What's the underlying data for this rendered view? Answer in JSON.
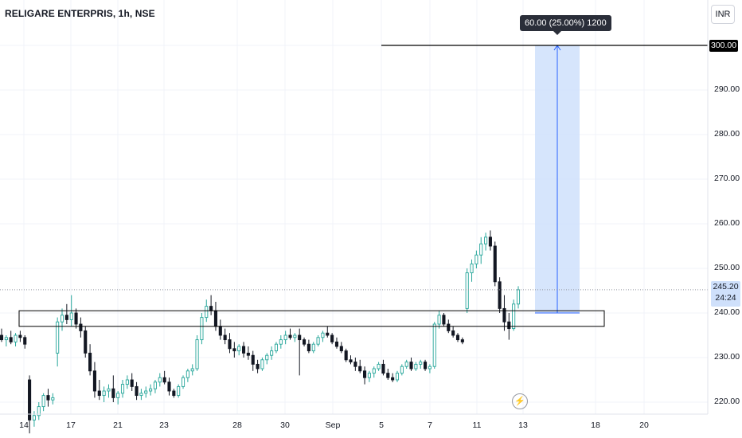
{
  "header": {
    "symbol": "RELIGARE ENTERPRIS, 1h, NSE",
    "currency": "INR"
  },
  "measure_tooltip": "60.00 (25.00%) 1200",
  "target_price_label": "300.00",
  "current_price": {
    "price": "245.20",
    "countdown": "24:24"
  },
  "colors": {
    "up": "#26a69a",
    "down": "#131722",
    "measure_fill": "#cfe0fb",
    "measure_line": "#2962ff"
  },
  "icons": {
    "replay": "lightning-icon"
  },
  "chart_data": {
    "type": "candlestick",
    "title": "RELIGARE ENTERPRIS, 1h, NSE",
    "ylim": [
      218,
      303
    ],
    "y_ticks": [
      "300.00",
      "290.00",
      "280.00",
      "270.00",
      "260.00",
      "250.00",
      "240.00",
      "230.00",
      "220.00"
    ],
    "x_ticks": [
      "14",
      "17",
      "21",
      "23",
      "28",
      "30",
      "Sep",
      "5",
      "7",
      "11",
      "13",
      "18",
      "20"
    ],
    "support_zone": {
      "low": 237,
      "high": 240.5
    },
    "target_line": 300,
    "measure": {
      "from_price": 240,
      "to_price": 300,
      "change": 60,
      "percent": 25,
      "qty": 1200
    },
    "candles": [
      [
        235,
        236.5,
        233.5,
        234
      ],
      [
        234,
        235,
        232.5,
        234.5
      ],
      [
        234.5,
        236,
        233,
        233.5
      ],
      [
        233.5,
        235.5,
        232.5,
        235
      ],
      [
        235,
        236,
        233.5,
        234.5
      ],
      [
        234.5,
        235,
        232,
        233
      ],
      [
        225,
        226,
        213,
        216
      ],
      [
        216,
        218,
        214.5,
        217
      ],
      [
        217,
        220,
        216,
        219
      ],
      [
        219,
        222,
        218,
        221.5
      ],
      [
        221.5,
        223,
        219,
        220.5
      ],
      [
        220.5,
        222,
        219.5,
        221
      ],
      [
        231,
        239,
        228,
        238
      ],
      [
        238,
        241,
        236,
        239.5
      ],
      [
        239.5,
        242,
        237.5,
        238.5
      ],
      [
        238.5,
        244,
        237,
        240
      ],
      [
        240,
        241,
        236.5,
        237.5
      ],
      [
        237.5,
        239,
        234.5,
        236
      ],
      [
        236,
        237,
        230,
        231
      ],
      [
        231,
        233,
        226,
        227
      ],
      [
        227,
        229,
        221,
        222.5
      ],
      [
        222.5,
        225,
        220.5,
        221.5
      ],
      [
        221.5,
        223.5,
        220,
        222.5
      ],
      [
        222.5,
        224,
        221,
        223
      ],
      [
        223,
        226,
        220,
        221
      ],
      [
        221,
        222.5,
        219.5,
        222
      ],
      [
        222,
        225,
        221,
        224
      ],
      [
        224,
        226,
        223,
        225
      ],
      [
        225,
        226.5,
        222.5,
        223.5
      ],
      [
        223.5,
        224.5,
        220.5,
        221.5
      ],
      [
        221.5,
        223,
        220.5,
        222
      ],
      [
        222,
        223.5,
        221,
        222.5
      ],
      [
        222.5,
        224,
        221.5,
        223
      ],
      [
        223,
        225,
        222,
        224.5
      ],
      [
        224.5,
        226.5,
        223.5,
        225.5
      ],
      [
        225.5,
        227,
        224,
        224.5
      ],
      [
        224.5,
        225.5,
        221.5,
        222.5
      ],
      [
        222.5,
        223,
        221,
        221.5
      ],
      [
        221.5,
        224,
        221,
        223.5
      ],
      [
        223.5,
        226,
        223,
        225.5
      ],
      [
        225.5,
        227.5,
        224.5,
        227
      ],
      [
        227,
        228.5,
        226,
        227.5
      ],
      [
        227.5,
        235,
        227,
        234
      ],
      [
        234,
        240,
        233,
        239
      ],
      [
        239,
        243,
        238,
        241.5
      ],
      [
        241.5,
        244,
        239.5,
        240.5
      ],
      [
        240.5,
        242.5,
        236,
        237
      ],
      [
        237,
        238.5,
        234,
        235
      ],
      [
        235,
        236.5,
        233,
        234
      ],
      [
        234,
        235.5,
        231,
        232
      ],
      [
        232,
        233.5,
        230,
        231.5
      ],
      [
        231.5,
        233,
        230.5,
        232.5
      ],
      [
        232.5,
        233.5,
        230,
        231
      ],
      [
        231,
        232.5,
        229.5,
        230.5
      ],
      [
        230.5,
        231.5,
        227,
        228.5
      ],
      [
        228.5,
        229.5,
        226.5,
        227.5
      ],
      [
        227.5,
        230,
        227,
        229.5
      ],
      [
        229.5,
        231,
        228.5,
        230.5
      ],
      [
        230.5,
        232.5,
        229.5,
        231.5
      ],
      [
        231.5,
        233.5,
        231,
        233
      ],
      [
        233,
        235,
        232,
        234
      ],
      [
        234,
        236,
        233,
        235
      ],
      [
        235,
        236.5,
        234,
        234.5
      ],
      [
        234.5,
        235.5,
        233.5,
        235
      ],
      [
        235,
        236.5,
        226,
        234
      ],
      [
        234,
        234.5,
        232.5,
        233
      ],
      [
        233,
        234,
        231,
        231.5
      ],
      [
        231.5,
        233.5,
        231,
        233
      ],
      [
        233,
        235,
        232.5,
        234.5
      ],
      [
        234.5,
        236,
        233.5,
        235.5
      ],
      [
        235.5,
        237,
        234.5,
        235
      ],
      [
        235,
        235.5,
        233,
        233.5
      ],
      [
        233.5,
        234.5,
        232,
        232.5
      ],
      [
        232.5,
        233.5,
        231,
        231.5
      ],
      [
        231.5,
        232,
        229,
        229.5
      ],
      [
        229.5,
        230.5,
        228.5,
        229
      ],
      [
        229,
        230,
        227,
        228
      ],
      [
        228,
        229.5,
        226.5,
        227
      ],
      [
        227,
        228,
        224,
        225.5
      ],
      [
        225.5,
        227,
        224.5,
        226.5
      ],
      [
        226.5,
        228,
        225.5,
        227.5
      ],
      [
        227.5,
        229,
        227,
        228.5
      ],
      [
        228.5,
        229.5,
        226,
        226.5
      ],
      [
        226.5,
        227.5,
        225,
        225.5
      ],
      [
        225.5,
        226.5,
        224.5,
        225
      ],
      [
        225,
        227,
        224.5,
        226.5
      ],
      [
        226.5,
        228.5,
        226,
        228
      ],
      [
        228,
        229.5,
        227.5,
        229
      ],
      [
        229,
        230,
        227,
        227.5
      ],
      [
        227.5,
        229,
        227,
        228.5
      ],
      [
        228.5,
        229.5,
        227.5,
        229
      ],
      [
        229,
        229.5,
        227,
        227.5
      ],
      [
        227.5,
        228.5,
        226.5,
        228
      ],
      [
        228,
        238,
        227.5,
        237.5
      ],
      [
        237.5,
        240.5,
        236.5,
        239.5
      ],
      [
        239.5,
        240,
        237,
        237.5
      ],
      [
        237.5,
        238.5,
        235.5,
        236
      ],
      [
        236,
        237,
        234.5,
        235
      ],
      [
        235,
        235.5,
        233.5,
        234
      ],
      [
        234,
        234.5,
        233,
        233.5
      ],
      [
        241,
        250,
        240,
        249
      ],
      [
        249,
        252,
        247,
        251
      ],
      [
        251,
        254,
        250,
        253
      ],
      [
        253,
        257,
        251,
        255.5
      ],
      [
        255.5,
        258,
        254,
        257
      ],
      [
        257,
        258.5,
        254,
        255
      ],
      [
        255,
        256,
        246,
        247
      ],
      [
        247,
        248,
        240,
        241
      ],
      [
        241,
        244,
        236,
        238
      ],
      [
        238,
        240,
        234,
        236.5
      ],
      [
        236.5,
        243,
        236,
        242
      ],
      [
        242,
        246,
        241,
        245.2
      ]
    ]
  }
}
